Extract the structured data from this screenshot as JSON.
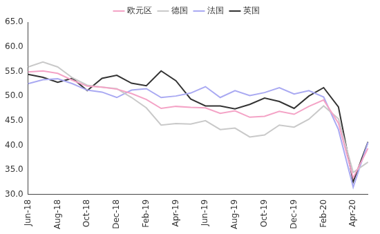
{
  "chart_data": {
    "type": "line",
    "categories": [
      "Jun-18",
      null,
      "Aug-18",
      null,
      "Oct-18",
      null,
      "Dec-18",
      null,
      "Feb-19",
      null,
      "Apr-19",
      null,
      "Jun-19",
      null,
      "Aug-19",
      null,
      "Oct-19",
      null,
      "Dec-19",
      null,
      "Feb-20",
      null,
      "Apr-20",
      null
    ],
    "series": [
      {
        "name": "欧元区",
        "color": "#f4a3c6",
        "values": [
          54.9,
          55.1,
          54.6,
          53.2,
          52.0,
          51.8,
          51.4,
          50.5,
          49.3,
          47.5,
          47.9,
          47.7,
          47.6,
          46.5,
          47.0,
          45.7,
          45.9,
          46.9,
          46.3,
          47.9,
          49.2,
          44.5,
          33.4,
          39.4
        ]
      },
      {
        "name": "德国",
        "color": "#c9c9c9",
        "values": [
          55.9,
          56.9,
          55.9,
          53.7,
          52.2,
          51.8,
          51.5,
          49.7,
          47.6,
          44.1,
          44.4,
          44.3,
          45.0,
          43.2,
          43.5,
          41.7,
          42.1,
          44.1,
          43.7,
          45.3,
          48.0,
          45.4,
          34.5,
          36.6
        ]
      },
      {
        "name": "法国",
        "color": "#a9a9f2",
        "values": [
          52.5,
          53.3,
          53.5,
          52.5,
          51.2,
          50.8,
          49.7,
          51.2,
          51.5,
          49.7,
          50.0,
          50.6,
          51.9,
          49.7,
          51.1,
          50.1,
          50.7,
          51.7,
          50.4,
          51.1,
          49.8,
          43.2,
          31.5,
          40.6
        ]
      },
      {
        "name": "英国",
        "color": "#333333",
        "values": [
          54.4,
          53.8,
          52.8,
          53.6,
          51.1,
          53.6,
          54.2,
          52.6,
          52.1,
          55.1,
          53.1,
          49.4,
          48.0,
          48.0,
          47.4,
          48.3,
          49.6,
          48.9,
          47.5,
          50.0,
          51.7,
          47.8,
          32.6,
          40.7
        ]
      }
    ],
    "ylim": [
      30,
      65
    ],
    "yticks": [
      {
        "value": 30,
        "label": "30.0"
      },
      {
        "value": 35,
        "label": "35.0"
      },
      {
        "value": 40,
        "label": "40.0"
      },
      {
        "value": 45,
        "label": "45.0"
      },
      {
        "value": 50,
        "label": "50.0"
      },
      {
        "value": 55,
        "label": "55.0"
      },
      {
        "value": 60,
        "label": "60.0"
      },
      {
        "value": 65,
        "label": "65.0"
      }
    ],
    "grid": false,
    "legend": "top"
  }
}
